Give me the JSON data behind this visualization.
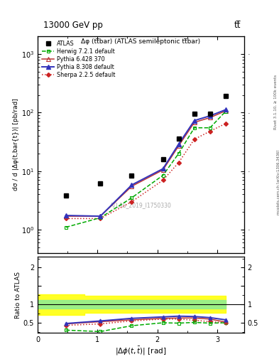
{
  "title_top": "13000 GeV pp",
  "title_top_right": "tt̅",
  "plot_title": "Δφ (tt̅bar) (ATLAS semileptonic tt̅bar)",
  "watermark": "ATLAS_2019_I1750330",
  "right_label_top": "Rivet 3.1.10, ≥ 100k events",
  "right_label_bot": "mcplots.cern.ch [arXiv:1306.3436]",
  "y_label": "dσ / d |Δφ(t,bar{t})| [pb/rad]",
  "y_label_ratio": "Ratio to ATLAS",
  "xlim": [
    0,
    3.45
  ],
  "ylim_main": [
    0.4,
    2000
  ],
  "ylim_ratio": [
    0.22,
    2.3
  ],
  "atlas_x": [
    0.4712,
    1.0472,
    1.5708,
    2.0944,
    2.3562,
    2.618,
    2.8798,
    3.1416
  ],
  "atlas_y": [
    3.8,
    6.2,
    8.5,
    16.0,
    36.0,
    95.0,
    95.0,
    190.0
  ],
  "herwig_x": [
    0.4712,
    1.0472,
    1.5708,
    2.0944,
    2.3562,
    2.618,
    2.8798,
    3.1416
  ],
  "herwig_y": [
    1.1,
    1.6,
    3.5,
    8.5,
    20.0,
    55.0,
    55.0,
    105.0
  ],
  "pythia6_x": [
    0.4712,
    1.0472,
    1.5708,
    2.0944,
    2.3562,
    2.618,
    2.8798,
    3.1416
  ],
  "pythia6_y": [
    1.7,
    1.7,
    5.5,
    10.5,
    27.0,
    68.0,
    82.0,
    107.0
  ],
  "pythia8_x": [
    0.4712,
    1.0472,
    1.5708,
    2.0944,
    2.3562,
    2.618,
    2.8798,
    3.1416
  ],
  "pythia8_y": [
    1.75,
    1.7,
    5.8,
    11.0,
    29.0,
    73.0,
    88.0,
    112.0
  ],
  "sherpa_x": [
    0.4712,
    1.0472,
    1.5708,
    2.0944,
    2.3562,
    2.618,
    2.8798,
    3.1416
  ],
  "sherpa_y": [
    1.55,
    1.55,
    3.0,
    7.0,
    14.0,
    35.0,
    48.0,
    65.0
  ],
  "herwig_ratio_x": [
    0.4712,
    1.0472,
    1.5708,
    2.0944,
    2.3562,
    2.618,
    2.8798,
    3.1416
  ],
  "herwig_ratio_y": [
    0.3,
    0.26,
    0.42,
    0.5,
    0.49,
    0.51,
    0.49,
    0.5
  ],
  "pythia6_ratio_x": [
    0.4712,
    1.0472,
    1.5708,
    2.0944,
    2.3562,
    2.618,
    2.8798,
    3.1416
  ],
  "pythia6_ratio_y": [
    0.47,
    0.53,
    0.58,
    0.62,
    0.63,
    0.63,
    0.6,
    0.52
  ],
  "pythia8_ratio_x": [
    0.4712,
    1.0472,
    1.5708,
    2.0944,
    2.3562,
    2.618,
    2.8798,
    3.1416
  ],
  "pythia8_ratio_y": [
    0.48,
    0.55,
    0.62,
    0.66,
    0.68,
    0.67,
    0.64,
    0.58
  ],
  "sherpa_ratio_x": [
    0.4712,
    1.0472,
    1.5708,
    2.0944,
    2.3562,
    2.618,
    2.8798,
    3.1416
  ],
  "sherpa_ratio_y": [
    0.43,
    0.47,
    0.55,
    0.6,
    0.6,
    0.57,
    0.53,
    0.5
  ],
  "band_x_edges": [
    0.0,
    0.7854,
    0.7854,
    1.5708,
    1.5708,
    3.1416
  ],
  "band_yellow_lo_vals": [
    0.72,
    0.72,
    0.77,
    0.77,
    0.77,
    0.77
  ],
  "band_yellow_hi_vals": [
    1.28,
    1.28,
    1.23,
    1.23,
    1.23,
    1.23
  ],
  "band_green_lo_vals": [
    0.88,
    0.88,
    0.88,
    0.88,
    0.88,
    0.88
  ],
  "band_green_hi_vals": [
    1.12,
    1.12,
    1.12,
    1.12,
    1.12,
    1.12
  ],
  "herwig_color": "#00aa00",
  "pythia6_color": "#bb3333",
  "pythia8_color": "#3333bb",
  "sherpa_color": "#cc2222"
}
